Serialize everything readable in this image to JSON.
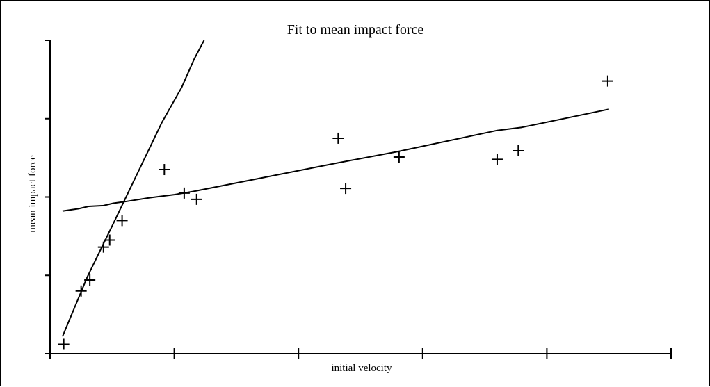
{
  "chart_data": {
    "type": "scatter",
    "title": "Fit to mean impact force",
    "xlabel": "initial velocity",
    "ylabel": "mean impact force",
    "xlim": [
      0,
      50
    ],
    "ylim": [
      0,
      4
    ],
    "x_ticks": [
      0,
      10,
      20,
      30,
      40,
      50
    ],
    "y_ticks": [
      0,
      1,
      2,
      3,
      4
    ],
    "tick_labels_shown": false,
    "grid": false,
    "legend": "none",
    "colors": {
      "ink": "#000000",
      "background": "#ffffff"
    },
    "series": [
      {
        "kind": "points",
        "marker": "plus",
        "points": [
          {
            "x": 1.1,
            "y": 0.12
          },
          {
            "x": 2.5,
            "y": 0.8
          },
          {
            "x": 3.2,
            "y": 0.94
          },
          {
            "x": 4.3,
            "y": 1.36
          },
          {
            "x": 4.8,
            "y": 1.45
          },
          {
            "x": 5.8,
            "y": 1.7
          },
          {
            "x": 9.2,
            "y": 2.35
          },
          {
            "x": 10.8,
            "y": 2.05
          },
          {
            "x": 11.8,
            "y": 1.97
          },
          {
            "x": 23.2,
            "y": 2.75
          },
          {
            "x": 23.8,
            "y": 2.11
          },
          {
            "x": 28.1,
            "y": 2.51
          },
          {
            "x": 36.0,
            "y": 2.48
          },
          {
            "x": 37.7,
            "y": 2.59
          },
          {
            "x": 44.9,
            "y": 3.48
          }
        ]
      },
      {
        "kind": "line",
        "points": [
          {
            "x": 1.0,
            "y": 1.82
          },
          {
            "x": 2.3,
            "y": 1.85
          },
          {
            "x": 3.1,
            "y": 1.88
          },
          {
            "x": 4.3,
            "y": 1.89
          },
          {
            "x": 5.1,
            "y": 1.92
          },
          {
            "x": 6.0,
            "y": 1.94
          },
          {
            "x": 8.0,
            "y": 1.99
          },
          {
            "x": 10.0,
            "y": 2.03
          },
          {
            "x": 11.5,
            "y": 2.07
          },
          {
            "x": 23.0,
            "y": 2.43
          },
          {
            "x": 28.0,
            "y": 2.58
          },
          {
            "x": 36.0,
            "y": 2.85
          },
          {
            "x": 38.0,
            "y": 2.89
          },
          {
            "x": 45.0,
            "y": 3.12
          }
        ]
      },
      {
        "kind": "line",
        "points": [
          {
            "x": 1.0,
            "y": 0.22
          },
          {
            "x": 3.0,
            "y": 0.98
          },
          {
            "x": 5.0,
            "y": 1.63
          },
          {
            "x": 7.0,
            "y": 2.29
          },
          {
            "x": 9.0,
            "y": 2.95
          },
          {
            "x": 10.6,
            "y": 3.4
          },
          {
            "x": 11.6,
            "y": 3.76
          },
          {
            "x": 12.4,
            "y": 4.0
          }
        ]
      }
    ]
  }
}
